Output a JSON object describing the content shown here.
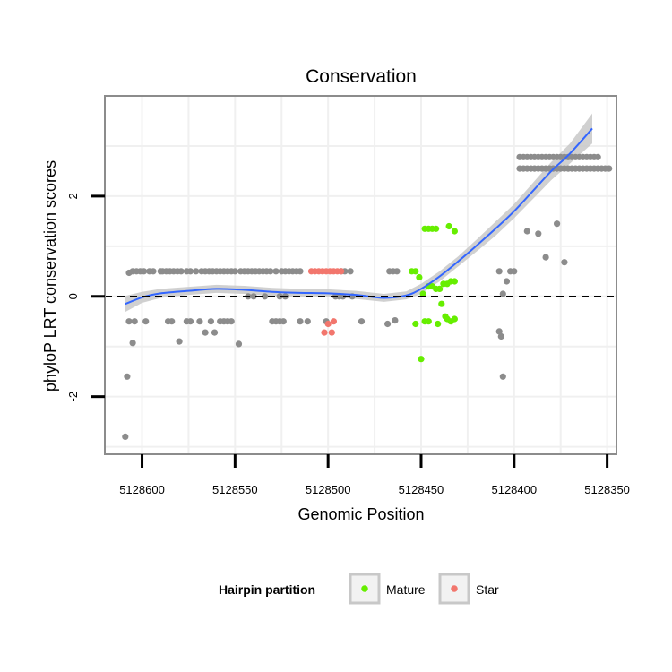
{
  "chart_data": {
    "type": "scatter",
    "title": "Conservation",
    "xlabel": "Genomic Position",
    "ylabel": "phyloP LRT conservation scores",
    "x_reversed": true,
    "xlim": [
      5128620,
      5128345
    ],
    "ylim": [
      -3.15,
      4.0
    ],
    "x_ticks": [
      5128600,
      5128550,
      5128500,
      5128450,
      5128400,
      5128350
    ],
    "x_tick_labels": [
      "5128600",
      "5128550",
      "5128500",
      "5128450",
      "5128400",
      "5128350"
    ],
    "y_ticks": [
      -2,
      0,
      2
    ],
    "y_tick_labels": [
      "-2",
      "0",
      "2"
    ],
    "grid": true,
    "reference_line": {
      "y": 0,
      "style": "dashed",
      "color": "#000000"
    },
    "colors": {
      "Other": "#8c8c8c",
      "Mature": "#66ee00",
      "Star": "#f2766d",
      "smooth_line": "#3366ff",
      "smooth_band": "#c8c8c8",
      "panel_border": "#8c8c8c",
      "grid": "#f0f0f0"
    },
    "legend": {
      "title": "Hairpin partition",
      "position": "bottom",
      "entries": [
        {
          "name": "Mature",
          "color": "#66ee00"
        },
        {
          "name": "Star",
          "color": "#f2766d"
        }
      ]
    },
    "series": [
      {
        "name": "Other",
        "points": [
          [
            5128609,
            -2.8
          ],
          [
            5128608,
            -1.6
          ],
          [
            5128607,
            -0.5
          ],
          [
            5128605,
            -0.93
          ],
          [
            5128604,
            -0.5
          ],
          [
            5128607,
            0.47
          ],
          [
            5128605,
            0.5
          ],
          [
            5128603,
            0.5
          ],
          [
            5128601,
            0.5
          ],
          [
            5128599,
            0.5
          ],
          [
            5128596,
            0.5
          ],
          [
            5128594,
            0.5
          ],
          [
            5128590,
            0.5
          ],
          [
            5128589,
            0.5
          ],
          [
            5128587,
            0.5
          ],
          [
            5128585,
            0.5
          ],
          [
            5128583,
            0.5
          ],
          [
            5128581,
            0.5
          ],
          [
            5128579,
            0.5
          ],
          [
            5128576,
            0.5
          ],
          [
            5128574,
            0.5
          ],
          [
            5128571,
            0.5
          ],
          [
            5128568,
            0.5
          ],
          [
            5128566,
            0.5
          ],
          [
            5128564,
            0.5
          ],
          [
            5128562,
            0.5
          ],
          [
            5128560,
            0.5
          ],
          [
            5128558,
            0.5
          ],
          [
            5128556,
            0.5
          ],
          [
            5128554,
            0.5
          ],
          [
            5128552,
            0.5
          ],
          [
            5128550,
            0.5
          ],
          [
            5128547,
            0.5
          ],
          [
            5128545,
            0.5
          ],
          [
            5128543,
            0.5
          ],
          [
            5128541,
            0.5
          ],
          [
            5128539,
            0.5
          ],
          [
            5128537,
            0.5
          ],
          [
            5128535,
            0.5
          ],
          [
            5128533,
            0.5
          ],
          [
            5128531,
            0.5
          ],
          [
            5128528,
            0.5
          ],
          [
            5128525,
            0.5
          ],
          [
            5128523,
            0.5
          ],
          [
            5128521,
            0.5
          ],
          [
            5128519,
            0.5
          ],
          [
            5128517,
            0.5
          ],
          [
            5128515,
            0.5
          ],
          [
            5128493,
            0.5
          ],
          [
            5128491,
            0.5
          ],
          [
            5128488,
            0.5
          ],
          [
            5128467,
            0.5
          ],
          [
            5128465,
            0.5
          ],
          [
            5128463,
            0.5
          ],
          [
            5128598,
            -0.5
          ],
          [
            5128586,
            -0.5
          ],
          [
            5128584,
            -0.5
          ],
          [
            5128580,
            -0.9
          ],
          [
            5128576,
            -0.5
          ],
          [
            5128574,
            -0.5
          ],
          [
            5128569,
            -0.5
          ],
          [
            5128566,
            -0.72
          ],
          [
            5128563,
            -0.5
          ],
          [
            5128561,
            -0.72
          ],
          [
            5128558,
            -0.5
          ],
          [
            5128556,
            -0.5
          ],
          [
            5128554,
            -0.5
          ],
          [
            5128552,
            -0.5
          ],
          [
            5128548,
            -0.95
          ],
          [
            5128530,
            -0.5
          ],
          [
            5128528,
            -0.5
          ],
          [
            5128526,
            -0.5
          ],
          [
            5128524,
            -0.5
          ],
          [
            5128515,
            -0.5
          ],
          [
            5128511,
            -0.5
          ],
          [
            5128501,
            -0.5
          ],
          [
            5128482,
            -0.5
          ],
          [
            5128468,
            -0.55
          ],
          [
            5128464,
            -0.48
          ],
          [
            5128543,
            0.0
          ],
          [
            5128540,
            0.0
          ],
          [
            5128534,
            0.0
          ],
          [
            5128526,
            0.0
          ],
          [
            5128523,
            0.0
          ],
          [
            5128496,
            0.0
          ],
          [
            5128494,
            0.0
          ],
          [
            5128492,
            0.0
          ],
          [
            5128487,
            0.0
          ],
          [
            5128397,
            2.78
          ],
          [
            5128395,
            2.78
          ],
          [
            5128393,
            2.78
          ],
          [
            5128391,
            2.78
          ],
          [
            5128389,
            2.78
          ],
          [
            5128387,
            2.78
          ],
          [
            5128385,
            2.78
          ],
          [
            5128383,
            2.78
          ],
          [
            5128381,
            2.78
          ],
          [
            5128379,
            2.78
          ],
          [
            5128377,
            2.78
          ],
          [
            5128375,
            2.78
          ],
          [
            5128373,
            2.78
          ],
          [
            5128371,
            2.78
          ],
          [
            5128369,
            2.78
          ],
          [
            5128367,
            2.78
          ],
          [
            5128365,
            2.78
          ],
          [
            5128363,
            2.78
          ],
          [
            5128361,
            2.78
          ],
          [
            5128359,
            2.78
          ],
          [
            5128357,
            2.78
          ],
          [
            5128355,
            2.78
          ],
          [
            5128397,
            2.55
          ],
          [
            5128395,
            2.55
          ],
          [
            5128393,
            2.55
          ],
          [
            5128391,
            2.55
          ],
          [
            5128389,
            2.55
          ],
          [
            5128387,
            2.55
          ],
          [
            5128385,
            2.55
          ],
          [
            5128383,
            2.55
          ],
          [
            5128381,
            2.55
          ],
          [
            5128379,
            2.55
          ],
          [
            5128377,
            2.55
          ],
          [
            5128375,
            2.55
          ],
          [
            5128373,
            2.55
          ],
          [
            5128371,
            2.55
          ],
          [
            5128369,
            2.55
          ],
          [
            5128367,
            2.55
          ],
          [
            5128365,
            2.55
          ],
          [
            5128363,
            2.55
          ],
          [
            5128361,
            2.55
          ],
          [
            5128359,
            2.55
          ],
          [
            5128357,
            2.55
          ],
          [
            5128355,
            2.55
          ],
          [
            5128353,
            2.55
          ],
          [
            5128351,
            2.55
          ],
          [
            5128349,
            2.55
          ],
          [
            5128393,
            1.3
          ],
          [
            5128387,
            1.25
          ],
          [
            5128377,
            1.45
          ],
          [
            5128383,
            0.78
          ],
          [
            5128373,
            0.68
          ],
          [
            5128402,
            0.5
          ],
          [
            5128400,
            0.5
          ],
          [
            5128408,
            0.5
          ],
          [
            5128406,
            0.05
          ],
          [
            5128404,
            0.3
          ],
          [
            5128408,
            -0.7
          ],
          [
            5128407,
            -0.8
          ],
          [
            5128406,
            -1.6
          ]
        ]
      },
      {
        "name": "Mature",
        "points": [
          [
            5128455,
            0.5
          ],
          [
            5128453,
            0.5
          ],
          [
            5128451,
            0.38
          ],
          [
            5128449,
            0.05
          ],
          [
            5128448,
            1.35
          ],
          [
            5128446,
            1.35
          ],
          [
            5128444,
            1.35
          ],
          [
            5128442,
            1.35
          ],
          [
            5128446,
            0.2
          ],
          [
            5128444,
            0.2
          ],
          [
            5128442,
            0.15
          ],
          [
            5128440,
            0.15
          ],
          [
            5128438,
            0.25
          ],
          [
            5128436,
            0.25
          ],
          [
            5128434,
            0.3
          ],
          [
            5128432,
            0.3
          ],
          [
            5128435,
            1.4
          ],
          [
            5128432,
            1.3
          ],
          [
            5128436,
            -0.45
          ],
          [
            5128434,
            -0.5
          ],
          [
            5128432,
            -0.45
          ],
          [
            5128441,
            -0.55
          ],
          [
            5128437,
            -0.4
          ],
          [
            5128448,
            -0.5
          ],
          [
            5128446,
            -0.5
          ],
          [
            5128453,
            -0.55
          ],
          [
            5128450,
            -1.25
          ],
          [
            5128439,
            -0.15
          ]
        ]
      },
      {
        "name": "Star",
        "points": [
          [
            5128509,
            0.5
          ],
          [
            5128507,
            0.5
          ],
          [
            5128505,
            0.5
          ],
          [
            5128503,
            0.5
          ],
          [
            5128501,
            0.5
          ],
          [
            5128499,
            0.5
          ],
          [
            5128497,
            0.5
          ],
          [
            5128495,
            0.5
          ],
          [
            5128493,
            0.5
          ],
          [
            5128500,
            -0.55
          ],
          [
            5128497,
            -0.5
          ],
          [
            5128502,
            -0.72
          ],
          [
            5128498,
            -0.72
          ]
        ]
      }
    ],
    "smooth": {
      "method": "loess",
      "points": [
        [
          5128609,
          -0.15
        ],
        [
          5128600,
          -0.02
        ],
        [
          5128590,
          0.06
        ],
        [
          5128575,
          0.11
        ],
        [
          5128560,
          0.15
        ],
        [
          5128545,
          0.13
        ],
        [
          5128530,
          0.09
        ],
        [
          5128515,
          0.07
        ],
        [
          5128500,
          0.06
        ],
        [
          5128485,
          0.03
        ],
        [
          5128470,
          -0.03
        ],
        [
          5128458,
          0.02
        ],
        [
          5128450,
          0.15
        ],
        [
          5128440,
          0.4
        ],
        [
          5128430,
          0.7
        ],
        [
          5128420,
          1.02
        ],
        [
          5128410,
          1.35
        ],
        [
          5128400,
          1.7
        ],
        [
          5128390,
          2.1
        ],
        [
          5128380,
          2.5
        ],
        [
          5128370,
          2.85
        ],
        [
          5128358,
          3.35
        ]
      ],
      "band_halfwidth": [
        0.16,
        0.11,
        0.09,
        0.08,
        0.08,
        0.08,
        0.08,
        0.08,
        0.08,
        0.08,
        0.08,
        0.08,
        0.1,
        0.1,
        0.1,
        0.12,
        0.14,
        0.14,
        0.16,
        0.18,
        0.2,
        0.3
      ]
    }
  }
}
